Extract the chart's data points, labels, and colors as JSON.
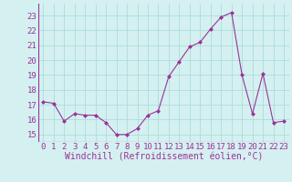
{
  "x": [
    0,
    1,
    2,
    3,
    4,
    5,
    6,
    7,
    8,
    9,
    10,
    11,
    12,
    13,
    14,
    15,
    16,
    17,
    18,
    19,
    20,
    21,
    22,
    23
  ],
  "y": [
    17.2,
    17.1,
    15.9,
    16.4,
    16.3,
    16.3,
    15.8,
    15.0,
    15.0,
    15.4,
    16.3,
    16.6,
    18.9,
    19.9,
    20.9,
    21.2,
    22.1,
    22.9,
    23.2,
    19.0,
    16.4,
    19.1,
    15.8,
    15.9
  ],
  "line_color": "#993399",
  "marker": "D",
  "marker_size": 2,
  "bg_color": "#d5f0f0",
  "grid_color": "#aadddd",
  "xlabel": "Windchill (Refroidissement éolien,°C)",
  "xlabel_color": "#993399",
  "tick_color": "#993399",
  "ylim": [
    14.5,
    23.8
  ],
  "yticks": [
    15,
    16,
    17,
    18,
    19,
    20,
    21,
    22,
    23
  ],
  "xticks": [
    0,
    1,
    2,
    3,
    4,
    5,
    6,
    7,
    8,
    9,
    10,
    11,
    12,
    13,
    14,
    15,
    16,
    17,
    18,
    19,
    20,
    21,
    22,
    23
  ],
  "font_size": 6.5,
  "xlabel_fontsize": 7.0
}
